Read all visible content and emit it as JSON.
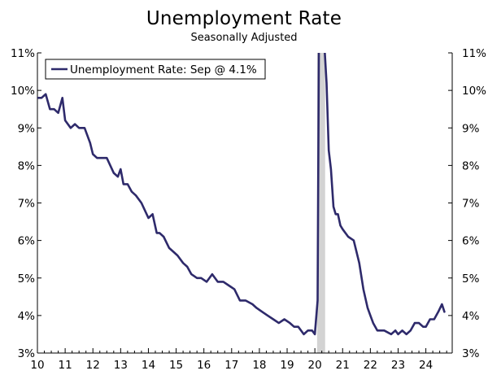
{
  "chart_data": {
    "type": "line",
    "title": "Unemployment Rate",
    "subtitle": "Seasonally Adjusted",
    "xlabel": "",
    "ylabel": "",
    "xlim": [
      2010,
      2024.95
    ],
    "ylim": [
      3,
      11
    ],
    "x_ticks": [
      {
        "value": 2010,
        "label": "10"
      },
      {
        "value": 2011,
        "label": "11"
      },
      {
        "value": 2012,
        "label": "12"
      },
      {
        "value": 2013,
        "label": "13"
      },
      {
        "value": 2014,
        "label": "14"
      },
      {
        "value": 2015,
        "label": "15"
      },
      {
        "value": 2016,
        "label": "16"
      },
      {
        "value": 2017,
        "label": "17"
      },
      {
        "value": 2018,
        "label": "18"
      },
      {
        "value": 2019,
        "label": "19"
      },
      {
        "value": 2020,
        "label": "20"
      },
      {
        "value": 2021,
        "label": "21"
      },
      {
        "value": 2022,
        "label": "22"
      },
      {
        "value": 2023,
        "label": "23"
      },
      {
        "value": 2024,
        "label": "24"
      }
    ],
    "y_ticks": [
      {
        "value": 3,
        "label": "3%"
      },
      {
        "value": 4,
        "label": "4%"
      },
      {
        "value": 5,
        "label": "5%"
      },
      {
        "value": 6,
        "label": "6%"
      },
      {
        "value": 7,
        "label": "7%"
      },
      {
        "value": 8,
        "label": "8%"
      },
      {
        "value": 9,
        "label": "9%"
      },
      {
        "value": 10,
        "label": "10%"
      },
      {
        "value": 11,
        "label": "11%"
      }
    ],
    "grid": false,
    "legend": {
      "position": "top-left",
      "entries": [
        "Unemployment Rate: Sep @ 4.1%"
      ]
    },
    "recession_shading": [
      {
        "start": 2020.08,
        "end": 2020.37
      }
    ],
    "colors": {
      "series": "#2e2a6b",
      "recession": "#d3d3d3",
      "axis": "#000000"
    },
    "series": [
      {
        "name": "Unemployment Rate: Sep @ 4.1%",
        "x": [
          2010.0,
          2010.15,
          2010.3,
          2010.45,
          2010.6,
          2010.75,
          2010.9,
          2011.0,
          2011.2,
          2011.35,
          2011.5,
          2011.6,
          2011.7,
          2011.9,
          2012.0,
          2012.15,
          2012.3,
          2012.5,
          2012.75,
          2012.9,
          2013.0,
          2013.1,
          2013.25,
          2013.4,
          2013.55,
          2013.75,
          2014.0,
          2014.15,
          2014.3,
          2014.4,
          2014.55,
          2014.75,
          2014.9,
          2015.05,
          2015.25,
          2015.4,
          2015.55,
          2015.75,
          2015.9,
          2016.1,
          2016.3,
          2016.5,
          2016.7,
          2016.9,
          2017.1,
          2017.3,
          2017.5,
          2017.75,
          2017.9,
          2018.1,
          2018.3,
          2018.5,
          2018.7,
          2018.9,
          2019.1,
          2019.25,
          2019.4,
          2019.6,
          2019.75,
          2019.9,
          2020.0,
          2020.1,
          2020.17,
          2020.25,
          2020.35,
          2020.42,
          2020.5,
          2020.58,
          2020.67,
          2020.75,
          2020.83,
          2020.92,
          2021.0,
          2021.2,
          2021.4,
          2021.6,
          2021.75,
          2021.9,
          2022.0,
          2022.1,
          2022.25,
          2022.5,
          2022.75,
          2022.9,
          2023.0,
          2023.15,
          2023.3,
          2023.45,
          2023.6,
          2023.75,
          2023.9,
          2024.0,
          2024.15,
          2024.3,
          2024.45,
          2024.58,
          2024.67
        ],
        "values": [
          9.8,
          9.8,
          9.9,
          9.5,
          9.5,
          9.4,
          9.8,
          9.2,
          9.0,
          9.1,
          9.0,
          9.0,
          9.0,
          8.6,
          8.3,
          8.2,
          8.2,
          8.2,
          7.8,
          7.7,
          7.9,
          7.5,
          7.5,
          7.3,
          7.2,
          7.0,
          6.6,
          6.7,
          6.2,
          6.2,
          6.1,
          5.8,
          5.7,
          5.6,
          5.4,
          5.3,
          5.1,
          5.0,
          5.0,
          4.9,
          5.1,
          4.9,
          4.9,
          4.8,
          4.7,
          4.4,
          4.4,
          4.3,
          4.2,
          4.1,
          4.0,
          3.9,
          3.8,
          3.9,
          3.8,
          3.7,
          3.7,
          3.5,
          3.6,
          3.6,
          3.5,
          4.4,
          14.7,
          13.3,
          11.1,
          10.2,
          8.4,
          7.9,
          6.9,
          6.7,
          6.7,
          6.4,
          6.3,
          6.1,
          6.0,
          5.4,
          4.7,
          4.2,
          4.0,
          3.8,
          3.6,
          3.6,
          3.5,
          3.6,
          3.5,
          3.6,
          3.5,
          3.6,
          3.8,
          3.8,
          3.7,
          3.7,
          3.9,
          3.9,
          4.1,
          4.3,
          4.1
        ]
      }
    ]
  }
}
